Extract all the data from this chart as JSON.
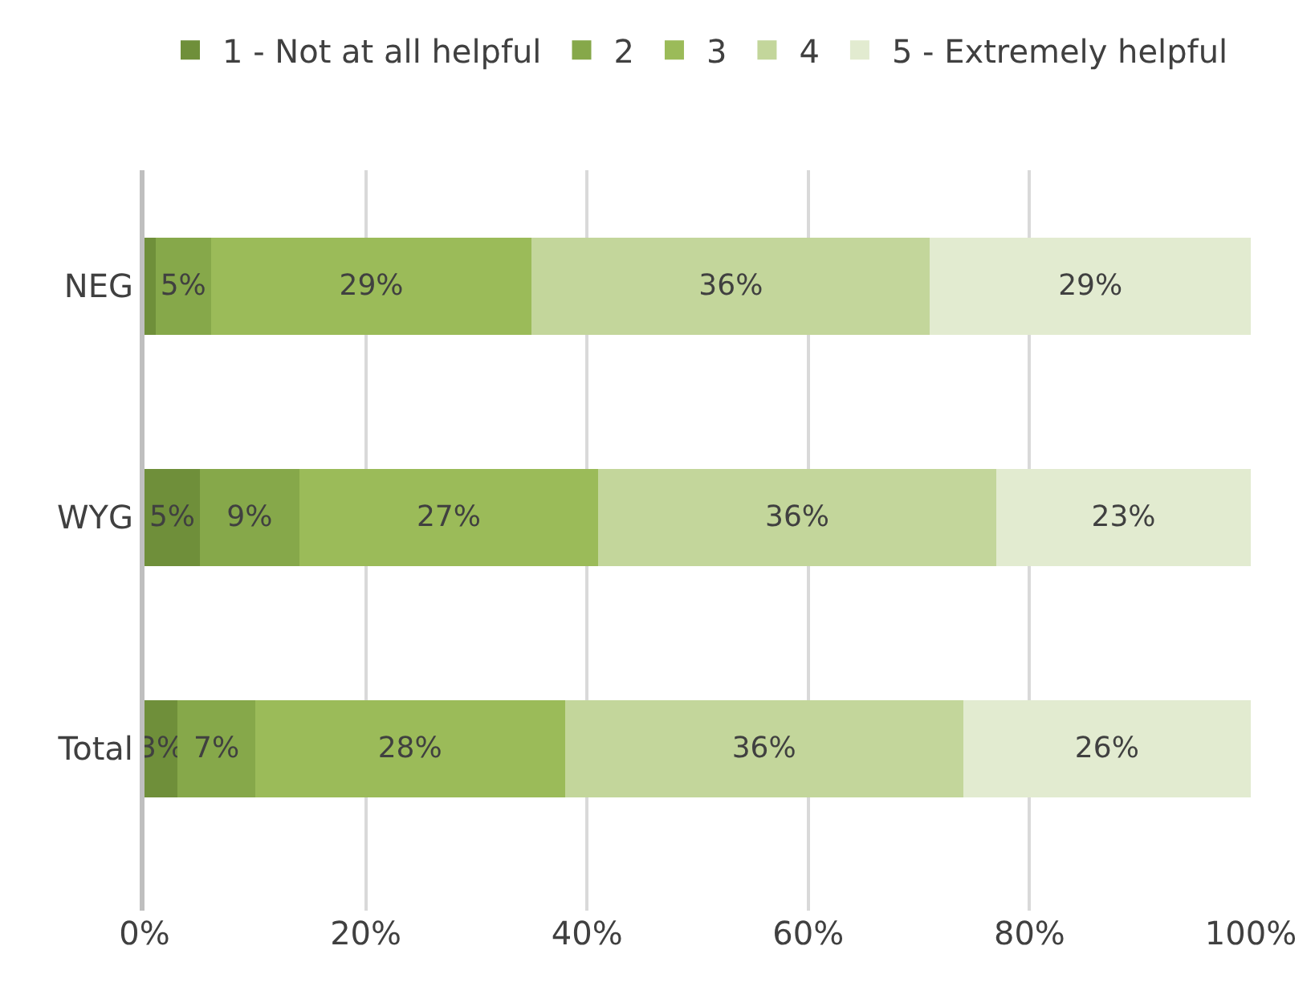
{
  "chart_data": {
    "type": "bar",
    "orientation": "horizontal",
    "stacked": true,
    "categories": [
      "NEG",
      "WYG",
      "Total"
    ],
    "series": [
      {
        "name": "1 - Not at all helpful",
        "color": "#6f8f3a",
        "values": [
          1,
          5,
          3
        ],
        "value_labels": [
          null,
          "5%",
          "3%"
        ]
      },
      {
        "name": "2",
        "color": "#86a84a",
        "values": [
          5,
          9,
          7
        ],
        "value_labels": [
          "5%",
          "9%",
          "7%"
        ]
      },
      {
        "name": "3",
        "color": "#9bbb59",
        "values": [
          29,
          27,
          28
        ],
        "value_labels": [
          "29%",
          "27%",
          "28%"
        ]
      },
      {
        "name": "4",
        "color": "#c3d69b",
        "values": [
          36,
          36,
          36
        ],
        "value_labels": [
          "36%",
          "36%",
          "36%"
        ]
      },
      {
        "name": "5 - Extremely helpful",
        "color": "#e2ebd0",
        "values": [
          29,
          23,
          26
        ],
        "value_labels": [
          "29%",
          "23%",
          "26%"
        ]
      }
    ],
    "xlim": [
      0,
      100
    ],
    "xticks": [
      {
        "value": 0,
        "label": "0%"
      },
      {
        "value": 20,
        "label": "20%"
      },
      {
        "value": 40,
        "label": "40%"
      },
      {
        "value": 60,
        "label": "60%"
      },
      {
        "value": 80,
        "label": "80%"
      },
      {
        "value": 100,
        "label": "100%"
      }
    ],
    "grid": "x",
    "legend": "top"
  }
}
